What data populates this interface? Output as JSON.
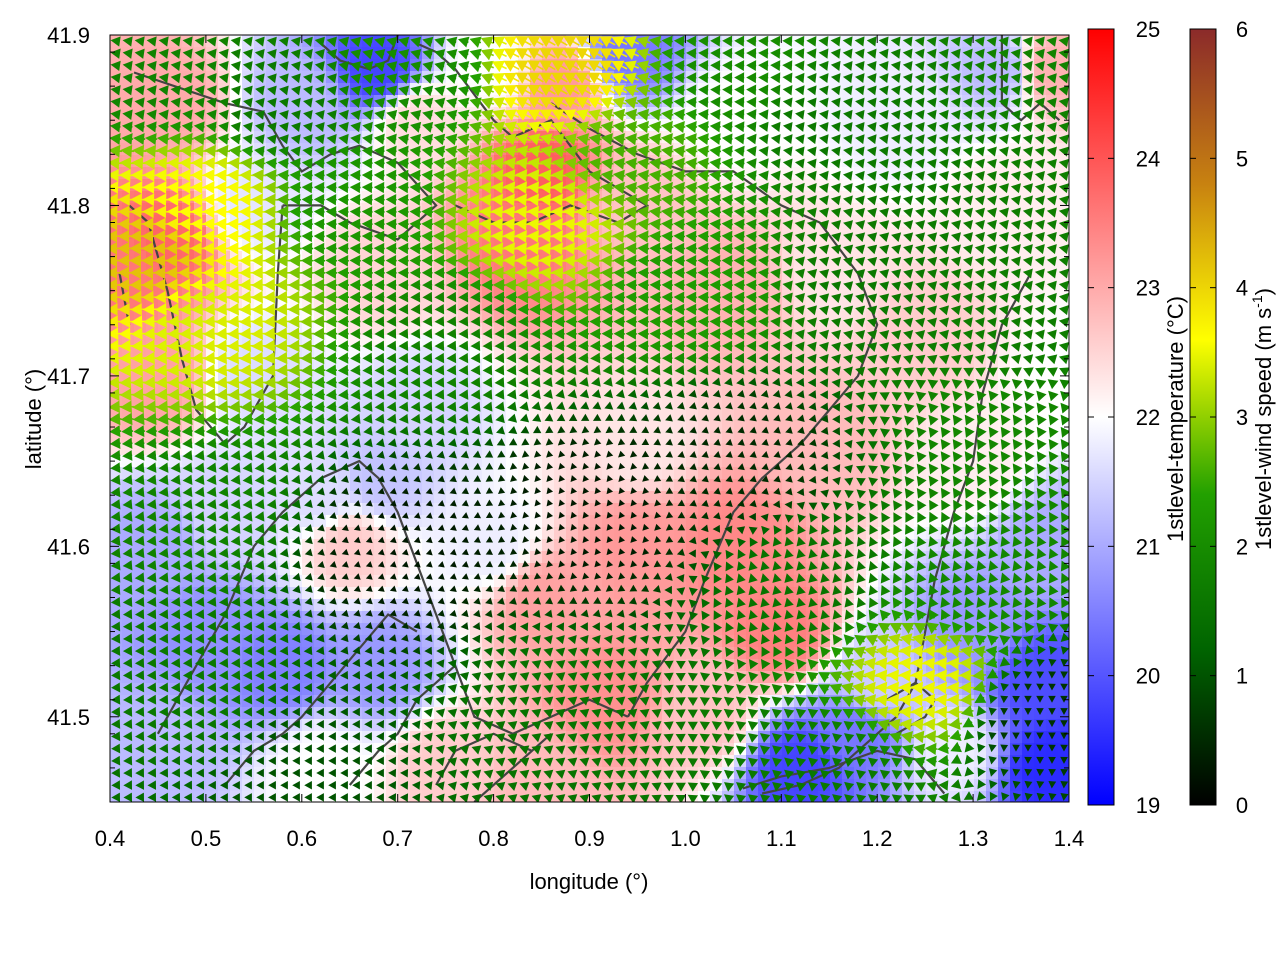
{
  "chart_data": {
    "type": "heatmap",
    "xlabel": "longitude (°)",
    "ylabel": "latitude (°)",
    "xlim": [
      0.4,
      1.4
    ],
    "ylim": [
      41.45,
      41.9
    ],
    "xticks": [
      {
        "v": 0.4,
        "label": "0.4"
      },
      {
        "v": 0.5,
        "label": "0.5"
      },
      {
        "v": 0.6,
        "label": "0.6"
      },
      {
        "v": 0.7,
        "label": "0.7"
      },
      {
        "v": 0.8,
        "label": "0.8"
      },
      {
        "v": 0.9,
        "label": "0.9"
      },
      {
        "v": 1.0,
        "label": "1.0"
      },
      {
        "v": 1.1,
        "label": "1.1"
      },
      {
        "v": 1.2,
        "label": "1.2"
      },
      {
        "v": 1.3,
        "label": "1.3"
      },
      {
        "v": 1.4,
        "label": "1.4"
      }
    ],
    "yticks": [
      {
        "v": 41.5,
        "label": "41.5"
      },
      {
        "v": 41.6,
        "label": "41.6"
      },
      {
        "v": 41.7,
        "label": "41.7"
      },
      {
        "v": 41.8,
        "label": "41.8"
      },
      {
        "v": 41.9,
        "label": "41.9"
      }
    ],
    "temperature_colorbar": {
      "label": "1stlevel-temperature (°C)",
      "range": [
        19,
        25
      ],
      "ticks": [
        {
          "v": 19,
          "label": "19"
        },
        {
          "v": 20,
          "label": "20"
        },
        {
          "v": 21,
          "label": "21"
        },
        {
          "v": 22,
          "label": "22"
        },
        {
          "v": 23,
          "label": "23"
        },
        {
          "v": 24,
          "label": "24"
        },
        {
          "v": 25,
          "label": "25"
        }
      ],
      "colors": [
        "#0000ff",
        "#ffffff",
        "#ff0000"
      ]
    },
    "windspeed_colorbar": {
      "label_main": "1stlevel-wind speed (m s",
      "label_sup": "-1",
      "label_end": ")",
      "range": [
        0,
        6
      ],
      "ticks": [
        {
          "v": 0,
          "label": "0"
        },
        {
          "v": 1,
          "label": "1"
        },
        {
          "v": 2,
          "label": "2"
        },
        {
          "v": 3,
          "label": "3"
        },
        {
          "v": 4,
          "label": "4"
        },
        {
          "v": 5,
          "label": "5"
        },
        {
          "v": 6,
          "label": "6"
        }
      ],
      "colors": [
        "#000000",
        "#006400",
        "#22a000",
        "#ffff00",
        "#c88210",
        "#8b2a2a"
      ]
    },
    "temperature_field": [
      {
        "x": 0.42,
        "y": 41.76,
        "t": 23.6
      },
      {
        "x": 0.46,
        "y": 41.78,
        "t": 23.8
      },
      {
        "x": 0.45,
        "y": 41.7,
        "t": 23.1
      },
      {
        "x": 0.46,
        "y": 41.86,
        "t": 23.0
      },
      {
        "x": 0.55,
        "y": 41.8,
        "t": 21.7
      },
      {
        "x": 0.55,
        "y": 41.7,
        "t": 21.6
      },
      {
        "x": 0.52,
        "y": 41.62,
        "t": 21.5
      },
      {
        "x": 0.45,
        "y": 41.6,
        "t": 21.0
      },
      {
        "x": 0.5,
        "y": 41.55,
        "t": 20.7
      },
      {
        "x": 0.58,
        "y": 41.53,
        "t": 20.5
      },
      {
        "x": 0.68,
        "y": 41.53,
        "t": 20.8
      },
      {
        "x": 0.45,
        "y": 41.48,
        "t": 21.2
      },
      {
        "x": 0.62,
        "y": 41.47,
        "t": 22.0
      },
      {
        "x": 0.62,
        "y": 41.63,
        "t": 21.6
      },
      {
        "x": 0.65,
        "y": 41.6,
        "t": 22.6
      },
      {
        "x": 0.6,
        "y": 41.86,
        "t": 21.2
      },
      {
        "x": 0.68,
        "y": 41.88,
        "t": 19.8
      },
      {
        "x": 0.72,
        "y": 41.85,
        "t": 22.4
      },
      {
        "x": 0.68,
        "y": 41.76,
        "t": 22.5
      },
      {
        "x": 0.72,
        "y": 41.68,
        "t": 21.5
      },
      {
        "x": 0.68,
        "y": 41.64,
        "t": 21.3
      },
      {
        "x": 0.8,
        "y": 41.6,
        "t": 21.8
      },
      {
        "x": 0.85,
        "y": 41.82,
        "t": 23.9
      },
      {
        "x": 0.83,
        "y": 41.78,
        "t": 23.6
      },
      {
        "x": 0.87,
        "y": 41.87,
        "t": 23.2
      },
      {
        "x": 0.94,
        "y": 41.89,
        "t": 20.4
      },
      {
        "x": 0.8,
        "y": 41.88,
        "t": 22.0
      },
      {
        "x": 0.95,
        "y": 41.8,
        "t": 22.7
      },
      {
        "x": 1.05,
        "y": 41.85,
        "t": 22.0
      },
      {
        "x": 1.05,
        "y": 41.75,
        "t": 22.9
      },
      {
        "x": 0.95,
        "y": 41.66,
        "t": 22.3
      },
      {
        "x": 0.95,
        "y": 41.6,
        "t": 23.2
      },
      {
        "x": 0.85,
        "y": 41.57,
        "t": 23.1
      },
      {
        "x": 0.92,
        "y": 41.51,
        "t": 23.3
      },
      {
        "x": 1.02,
        "y": 41.5,
        "t": 22.7
      },
      {
        "x": 1.05,
        "y": 41.6,
        "t": 23.4
      },
      {
        "x": 1.1,
        "y": 41.55,
        "t": 23.5
      },
      {
        "x": 1.15,
        "y": 41.66,
        "t": 22.8
      },
      {
        "x": 1.15,
        "y": 41.76,
        "t": 22.3
      },
      {
        "x": 1.22,
        "y": 41.85,
        "t": 21.8
      },
      {
        "x": 1.25,
        "y": 41.72,
        "t": 22.6
      },
      {
        "x": 1.3,
        "y": 41.65,
        "t": 22.2
      },
      {
        "x": 1.34,
        "y": 41.8,
        "t": 22.2
      },
      {
        "x": 1.33,
        "y": 41.88,
        "t": 21.2
      },
      {
        "x": 1.38,
        "y": 41.88,
        "t": 22.9
      },
      {
        "x": 1.38,
        "y": 41.6,
        "t": 21.0
      },
      {
        "x": 1.37,
        "y": 41.52,
        "t": 19.9
      },
      {
        "x": 1.38,
        "y": 41.47,
        "t": 19.5
      },
      {
        "x": 1.3,
        "y": 41.55,
        "t": 20.8
      },
      {
        "x": 1.2,
        "y": 41.52,
        "t": 21.4
      },
      {
        "x": 1.12,
        "y": 41.47,
        "t": 19.8
      },
      {
        "x": 1.18,
        "y": 41.49,
        "t": 20.4
      },
      {
        "x": 1.28,
        "y": 41.48,
        "t": 21.8
      },
      {
        "x": 0.85,
        "y": 41.46,
        "t": 22.8
      },
      {
        "x": 0.75,
        "y": 41.47,
        "t": 22.6
      },
      {
        "x": 1.4,
        "y": 41.7,
        "t": 22.0
      }
    ],
    "wind_field": [
      {
        "x": 0.44,
        "y": 41.77,
        "s": 4.2,
        "dir": 180
      },
      {
        "x": 0.5,
        "y": 41.8,
        "s": 3.6,
        "dir": 178
      },
      {
        "x": 0.5,
        "y": 41.73,
        "s": 3.4,
        "dir": 183
      },
      {
        "x": 0.45,
        "y": 41.88,
        "s": 1.8,
        "dir": 172
      },
      {
        "x": 0.58,
        "y": 41.86,
        "s": 1.6,
        "dir": 170
      },
      {
        "x": 0.65,
        "y": 41.8,
        "s": 2.2,
        "dir": 178
      },
      {
        "x": 0.72,
        "y": 41.88,
        "s": 2.0,
        "dir": 165
      },
      {
        "x": 0.87,
        "y": 41.88,
        "s": 4.0,
        "dir": 150
      },
      {
        "x": 0.85,
        "y": 41.79,
        "s": 3.5,
        "dir": 176
      },
      {
        "x": 0.95,
        "y": 41.83,
        "s": 2.6,
        "dir": 172
      },
      {
        "x": 1.05,
        "y": 41.88,
        "s": 2.0,
        "dir": 178
      },
      {
        "x": 1.15,
        "y": 41.85,
        "s": 1.6,
        "dir": 172
      },
      {
        "x": 1.0,
        "y": 41.75,
        "s": 2.3,
        "dir": 178
      },
      {
        "x": 1.2,
        "y": 41.76,
        "s": 1.6,
        "dir": 165
      },
      {
        "x": 1.34,
        "y": 41.74,
        "s": 1.7,
        "dir": 170
      },
      {
        "x": 0.75,
        "y": 41.72,
        "s": 1.8,
        "dir": 182
      },
      {
        "x": 0.5,
        "y": 41.62,
        "s": 1.8,
        "dir": 185
      },
      {
        "x": 0.48,
        "y": 41.52,
        "s": 1.6,
        "dir": 182
      },
      {
        "x": 0.7,
        "y": 41.6,
        "s": 0.3,
        "dir": 200
      },
      {
        "x": 0.9,
        "y": 41.62,
        "s": 0.3,
        "dir": 230
      },
      {
        "x": 0.85,
        "y": 41.5,
        "s": 1.5,
        "dir": 160
      },
      {
        "x": 1.05,
        "y": 41.65,
        "s": 0.5,
        "dir": 200
      },
      {
        "x": 1.12,
        "y": 41.58,
        "s": 1.5,
        "dir": 105
      },
      {
        "x": 1.25,
        "y": 41.52,
        "s": 3.5,
        "dir": 175
      },
      {
        "x": 1.3,
        "y": 41.58,
        "s": 1.9,
        "dir": 110
      },
      {
        "x": 1.33,
        "y": 41.66,
        "s": 1.9,
        "dir": 125
      },
      {
        "x": 1.15,
        "y": 41.47,
        "s": 1.6,
        "dir": 140
      },
      {
        "x": 1.37,
        "y": 41.5,
        "s": 0.6,
        "dir": 270
      },
      {
        "x": 0.6,
        "y": 41.47,
        "s": 1.0,
        "dir": 180
      }
    ],
    "contours": [
      [
        [
          0.425,
          41.878
        ],
        [
          0.52,
          41.86
        ],
        [
          0.56,
          41.855
        ],
        [
          0.58,
          41.835
        ],
        [
          0.6,
          41.82
        ],
        [
          0.63,
          41.83
        ],
        [
          0.66,
          41.835
        ],
        [
          0.7,
          41.825
        ],
        [
          0.74,
          41.8
        ],
        [
          0.7,
          41.78
        ],
        [
          0.65,
          41.79
        ],
        [
          0.62,
          41.8
        ],
        [
          0.58,
          41.8
        ]
      ],
      [
        [
          0.58,
          41.8
        ],
        [
          0.575,
          41.76
        ],
        [
          0.57,
          41.7
        ],
        [
          0.54,
          41.67
        ],
        [
          0.52,
          41.66
        ],
        [
          0.49,
          41.68
        ],
        [
          0.475,
          41.71
        ],
        [
          0.46,
          41.75
        ],
        [
          0.44,
          41.79
        ],
        [
          0.42,
          41.8
        ]
      ],
      [
        [
          0.41,
          41.76
        ],
        [
          0.42,
          41.73
        ]
      ],
      [
        [
          0.7,
          41.9
        ],
        [
          0.69,
          41.885
        ],
        [
          0.67,
          41.88
        ],
        [
          0.64,
          41.885
        ],
        [
          0.62,
          41.895
        ]
      ],
      [
        [
          0.72,
          41.895
        ],
        [
          0.74,
          41.89
        ],
        [
          0.76,
          41.88
        ],
        [
          0.78,
          41.865
        ],
        [
          0.8,
          41.85
        ],
        [
          0.82,
          41.84
        ],
        [
          0.86,
          41.85
        ],
        [
          0.9,
          41.82
        ],
        [
          0.96,
          41.8
        ],
        [
          0.93,
          41.79
        ],
        [
          0.88,
          41.8
        ],
        [
          0.84,
          41.79
        ],
        [
          0.8,
          41.79
        ],
        [
          0.76,
          41.8
        ]
      ],
      [
        [
          0.86,
          41.86
        ],
        [
          0.9,
          41.845
        ],
        [
          0.95,
          41.83
        ],
        [
          1.0,
          41.82
        ],
        [
          1.05,
          41.82
        ],
        [
          1.1,
          41.8
        ],
        [
          1.14,
          41.79
        ],
        [
          1.18,
          41.76
        ],
        [
          1.2,
          41.73
        ],
        [
          1.18,
          41.7
        ],
        [
          1.15,
          41.68
        ],
        [
          1.12,
          41.66
        ],
        [
          1.08,
          41.64
        ],
        [
          1.05,
          41.62
        ],
        [
          1.02,
          41.58
        ],
        [
          1.0,
          41.55
        ],
        [
          0.96,
          41.52
        ],
        [
          0.94,
          41.5
        ]
      ],
      [
        [
          0.94,
          41.5
        ],
        [
          0.9,
          41.51
        ],
        [
          0.86,
          41.5
        ],
        [
          0.82,
          41.49
        ],
        [
          0.78,
          41.5
        ],
        [
          0.76,
          41.53
        ],
        [
          0.74,
          41.56
        ],
        [
          0.72,
          41.59
        ],
        [
          0.7,
          41.62
        ],
        [
          0.68,
          41.64
        ],
        [
          0.66,
          41.65
        ],
        [
          0.62,
          41.64
        ],
        [
          0.58,
          41.62
        ],
        [
          0.55,
          41.6
        ],
        [
          0.52,
          41.56
        ],
        [
          0.48,
          41.52
        ],
        [
          0.45,
          41.49
        ]
      ],
      [
        [
          0.3,
          41.45
        ]
      ],
      [
        [
          1.33,
          41.9
        ],
        [
          1.33,
          41.86
        ],
        [
          1.35,
          41.85
        ],
        [
          1.37,
          41.86
        ],
        [
          1.39,
          41.85
        ]
      ],
      [
        [
          1.36,
          41.76
        ],
        [
          1.33,
          41.73
        ],
        [
          1.31,
          41.69
        ],
        [
          1.3,
          41.65
        ],
        [
          1.28,
          41.62
        ],
        [
          1.26,
          41.58
        ],
        [
          1.25,
          41.55
        ],
        [
          1.24,
          41.52
        ],
        [
          1.22,
          41.5
        ],
        [
          1.2,
          41.49
        ],
        [
          1.16,
          41.47
        ],
        [
          1.12,
          41.46
        ],
        [
          1.08,
          41.455
        ]
      ],
      [
        [
          1.21,
          41.51
        ],
        [
          1.24,
          41.52
        ],
        [
          1.26,
          41.51
        ],
        [
          1.25,
          41.5
        ],
        [
          1.22,
          41.49
        ]
      ],
      [
        [
          1.06,
          41.458
        ],
        [
          1.1,
          41.465
        ],
        [
          1.15,
          41.47
        ],
        [
          1.2,
          41.48
        ],
        [
          1.24,
          41.475
        ],
        [
          1.27,
          41.455
        ]
      ],
      [
        [
          0.52,
          41.46
        ],
        [
          0.55,
          41.48
        ],
        [
          0.58,
          41.49
        ],
        [
          0.6,
          41.5
        ],
        [
          0.63,
          41.52
        ],
        [
          0.66,
          41.54
        ],
        [
          0.69,
          41.56
        ],
        [
          0.72,
          41.55
        ]
      ],
      [
        [
          0.65,
          41.46
        ],
        [
          0.68,
          41.48
        ],
        [
          0.7,
          41.49
        ],
        [
          0.72,
          41.51
        ],
        [
          0.74,
          41.52
        ],
        [
          0.76,
          41.53
        ]
      ],
      [
        [
          0.74,
          41.46
        ],
        [
          0.76,
          41.48
        ],
        [
          0.8,
          41.49
        ],
        [
          0.84,
          41.48
        ]
      ],
      [
        [
          0.78,
          41.45
        ],
        [
          0.82,
          41.47
        ],
        [
          0.86,
          41.49
        ]
      ]
    ]
  }
}
